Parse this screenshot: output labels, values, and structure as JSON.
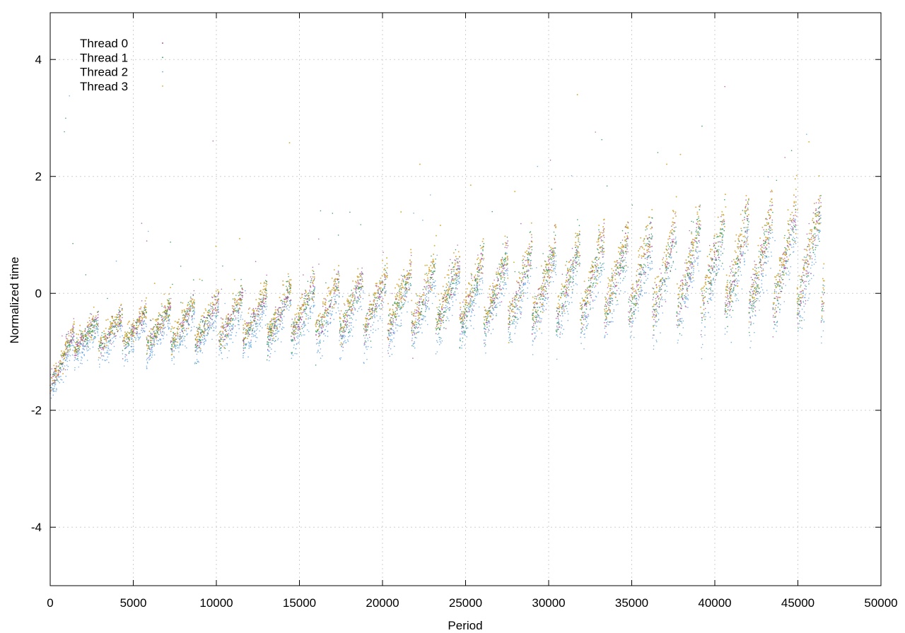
{
  "chart_data": {
    "type": "scatter",
    "title": "",
    "xlabel": "Period",
    "ylabel": "Normalized time",
    "xlim": [
      0,
      50000
    ],
    "ylim": [
      -5,
      4.8
    ],
    "x_ticks": [
      0,
      5000,
      10000,
      15000,
      20000,
      25000,
      30000,
      35000,
      40000,
      45000,
      50000
    ],
    "x_tick_labels": [
      "0",
      "5000",
      "10000",
      "15000",
      "20000",
      "25000",
      "30000",
      "35000",
      "40000",
      "45000",
      "50000"
    ],
    "y_ticks": [
      -4,
      -2,
      0,
      2,
      4
    ],
    "y_tick_labels": [
      "-4",
      "-2",
      "0",
      "2",
      "4"
    ],
    "grid": true,
    "legend_position": "top-left",
    "series": [
      {
        "name": "Thread 0",
        "color": "#9a2a8c",
        "marker": "dot"
      },
      {
        "name": "Thread 1",
        "color": "#2e9a5a",
        "marker": "x"
      },
      {
        "name": "Thread 2",
        "color": "#6aaae6",
        "marker": "dot"
      },
      {
        "name": "Thread 3",
        "color": "#d4a52e",
        "marker": "x"
      }
    ],
    "data_extent": {
      "x_range": [
        0,
        46600
      ],
      "description_points": [
        {
          "x": 0,
          "y_min": -1.6,
          "y_max": -1.3
        },
        {
          "x": 2000,
          "y_min": -1.0,
          "y_max": -0.5
        },
        {
          "x": 10000,
          "y_min": -1.0,
          "y_max": 0.0
        },
        {
          "x": 20000,
          "y_min": -0.8,
          "y_max": 0.8
        },
        {
          "x": 30000,
          "y_min": -0.6,
          "y_max": 1.5
        },
        {
          "x": 40000,
          "y_min": -0.4,
          "y_max": 2.0
        },
        {
          "x": 46600,
          "y_min": -0.3,
          "y_max": 2.2
        }
      ],
      "sawtooth_period": 1450
    }
  }
}
